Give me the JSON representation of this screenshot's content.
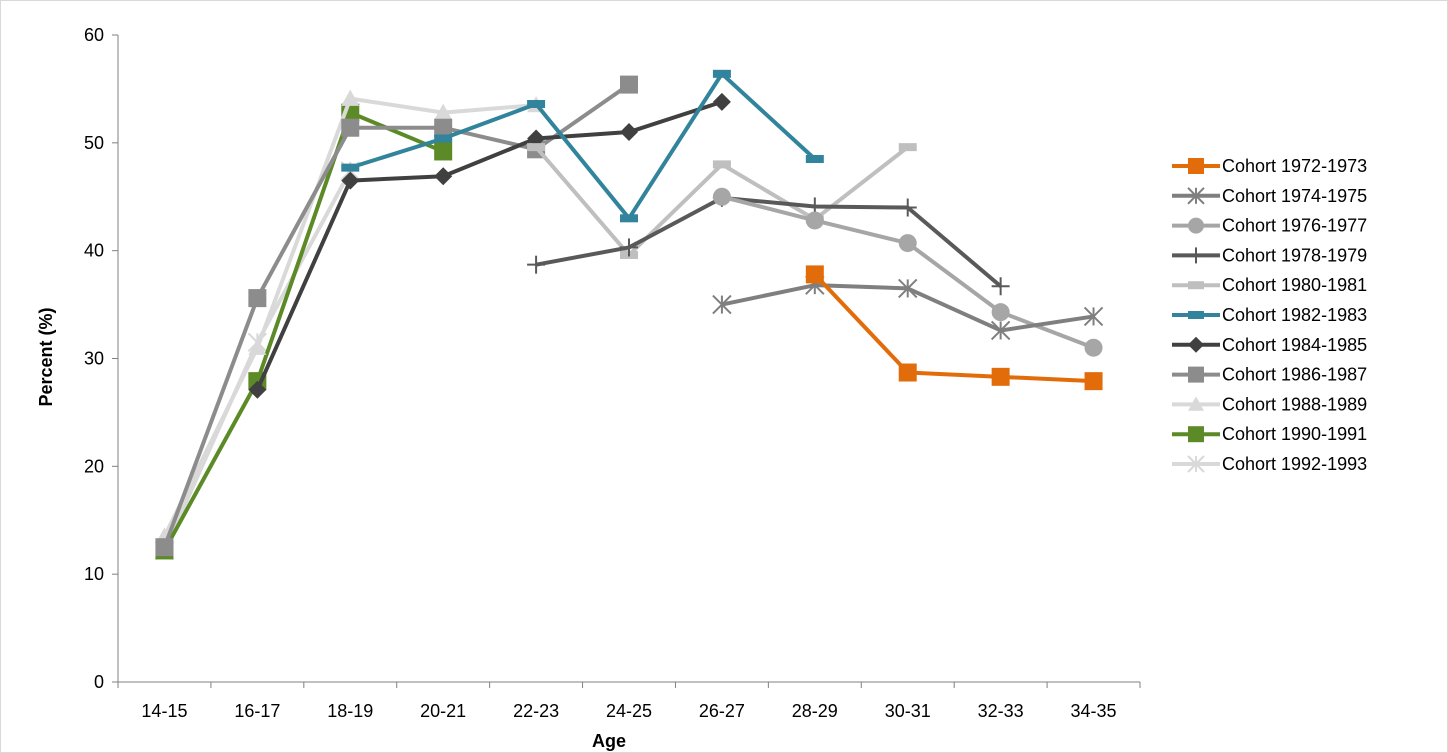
{
  "chart_data": {
    "type": "line",
    "title": "",
    "xlabel": "Age",
    "ylabel": "Percent (%)",
    "ylim": [
      0,
      60
    ],
    "yticks": [
      "0",
      "10",
      "20",
      "30",
      "40",
      "50",
      "60"
    ],
    "grid": false,
    "legend_position": "right",
    "categories": [
      "14-15",
      "16-17",
      "18-19",
      "20-21",
      "22-23",
      "24-25",
      "26-27",
      "28-29",
      "30-31",
      "32-33",
      "34-35"
    ],
    "series": [
      {
        "name": "Cohort 1972-1973",
        "color": "#e36c0a",
        "marker": "square",
        "width": 4,
        "values": [
          null,
          null,
          null,
          null,
          null,
          null,
          null,
          37.8,
          28.7,
          28.3,
          27.9
        ]
      },
      {
        "name": "Cohort 1974-1975",
        "color": "#7f7f7f",
        "marker": "asterisk",
        "width": 4,
        "values": [
          null,
          null,
          null,
          null,
          null,
          null,
          35.0,
          36.8,
          36.5,
          32.6,
          33.9
        ]
      },
      {
        "name": "Cohort 1976-1977",
        "color": "#a6a6a6",
        "marker": "circle",
        "width": 4,
        "values": [
          null,
          null,
          null,
          null,
          null,
          null,
          45.0,
          42.8,
          40.7,
          34.3,
          31.0
        ]
      },
      {
        "name": "Cohort 1978-1979",
        "color": "#595959",
        "marker": "plus",
        "width": 4,
        "values": [
          null,
          null,
          null,
          null,
          38.7,
          40.3,
          44.9,
          44.1,
          44.0,
          36.7,
          null
        ]
      },
      {
        "name": "Cohort 1980-1981",
        "color": "#bfbfbf",
        "marker": "dash",
        "width": 4,
        "values": [
          null,
          null,
          null,
          null,
          49.6,
          39.6,
          48.0,
          42.9,
          49.6,
          null,
          null
        ]
      },
      {
        "name": "Cohort 1982-1983",
        "color": "#31849b",
        "marker": "dash",
        "width": 4,
        "values": [
          null,
          null,
          47.7,
          50.4,
          53.6,
          43.0,
          56.4,
          48.5,
          null,
          null,
          null
        ]
      },
      {
        "name": "Cohort 1984-1985",
        "color": "#404040",
        "marker": "diamond",
        "width": 4,
        "values": [
          null,
          27.1,
          46.5,
          46.9,
          50.4,
          51.0,
          53.8,
          null,
          null,
          null,
          null
        ]
      },
      {
        "name": "Cohort 1986-1987",
        "color": "#8c8c8c",
        "marker": "square",
        "width": 4,
        "values": [
          12.5,
          35.6,
          51.4,
          51.4,
          49.4,
          55.4,
          null,
          null,
          null,
          null,
          null
        ]
      },
      {
        "name": "Cohort 1988-1989",
        "color": "#d9d9d9",
        "marker": "triangle",
        "width": 4,
        "values": [
          13.5,
          31.0,
          54.1,
          52.8,
          53.5,
          null,
          null,
          null,
          null,
          null,
          null
        ]
      },
      {
        "name": "Cohort 1990-1991",
        "color": "#5b8a27",
        "marker": "square",
        "width": 4,
        "values": [
          12.2,
          27.9,
          52.8,
          49.2,
          null,
          null,
          null,
          null,
          null,
          null,
          null
        ]
      },
      {
        "name": "Cohort 1992-1993",
        "color": "#d9d9d9",
        "marker": "asterisk",
        "width": 4,
        "values": [
          12.2,
          31.5,
          47.4,
          null,
          null,
          null,
          null,
          null,
          null,
          null,
          null
        ]
      }
    ]
  }
}
